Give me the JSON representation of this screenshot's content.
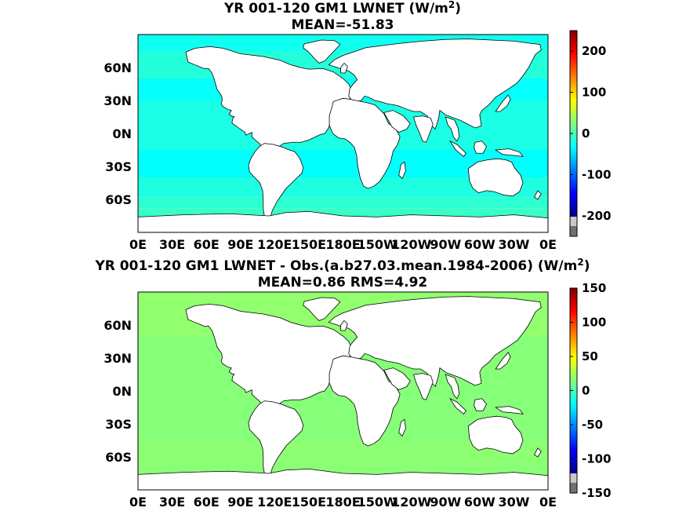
{
  "chart_data": [
    {
      "type": "heatmap",
      "title_line1": "YR 001-120 GM1  LWNET (W/m",
      "title_sup": "2",
      "title_close": ")",
      "subtitle": "MEAN=-51.83",
      "xlabel": "",
      "ylabel": "",
      "xticks": [
        "0E",
        "30E",
        "60E",
        "90E",
        "120E",
        "150E",
        "180E",
        "150W",
        "120W",
        "90W",
        "60W",
        "30W",
        "0E"
      ],
      "yticks": [
        "60N",
        "30N",
        "0N",
        "30S",
        "60S"
      ],
      "ytick_values": [
        60,
        30,
        0,
        -30,
        -60
      ],
      "lat_range": [
        -90,
        90
      ],
      "lon_range": [
        0,
        360
      ],
      "colorbar": {
        "range": [
          -250,
          250
        ],
        "ticks": [
          "200",
          "100",
          "0",
          "-100",
          "-200"
        ],
        "tick_values": [
          200,
          100,
          0,
          -100,
          -200
        ]
      },
      "field_levels": [
        {
          "lat_band": [
            75,
            90
          ],
          "value": -55
        },
        {
          "lat_band": [
            50,
            75
          ],
          "value": -45
        },
        {
          "lat_band": [
            30,
            50
          ],
          "value": -60
        },
        {
          "lat_band": [
            -15,
            30
          ],
          "value": -50
        },
        {
          "lat_band": [
            -40,
            -15
          ],
          "value": -62
        },
        {
          "lat_band": [
            -58,
            -40
          ],
          "value": -48
        },
        {
          "lat_band": [
            -68,
            -58
          ],
          "value": -40
        },
        {
          "lat_band": [
            -90,
            -68
          ],
          "value": -35
        }
      ]
    },
    {
      "type": "heatmap",
      "title_line1": "YR 001-120 GM1 LWNET - Obs.(a.b27.03.mean.1984-2006) (W/m",
      "title_sup": "2",
      "title_close": ")",
      "subtitle": "MEAN=0.86 RMS=4.92",
      "xlabel": "",
      "ylabel": "",
      "xticks": [
        "0E",
        "30E",
        "60E",
        "90E",
        "120E",
        "150E",
        "180E",
        "150W",
        "120W",
        "90W",
        "60W",
        "30W",
        "0E"
      ],
      "yticks": [
        "60N",
        "30N",
        "0N",
        "30S",
        "60S"
      ],
      "ytick_values": [
        60,
        30,
        0,
        -30,
        -60
      ],
      "lat_range": [
        -90,
        90
      ],
      "lon_range": [
        0,
        360
      ],
      "colorbar": {
        "range": [
          -150,
          150
        ],
        "ticks": [
          "150",
          "100",
          "50",
          "0",
          "-50",
          "-100",
          "-150"
        ],
        "tick_values": [
          150,
          100,
          50,
          0,
          -50,
          -100,
          -150
        ]
      },
      "field_levels": [
        {
          "lat_band": [
            50,
            90
          ],
          "value": 5
        },
        {
          "lat_band": [
            -45,
            50
          ],
          "value": 2
        },
        {
          "lat_band": [
            -65,
            -45
          ],
          "value": 4
        },
        {
          "lat_band": [
            -90,
            -65
          ],
          "value": 3
        }
      ]
    }
  ]
}
